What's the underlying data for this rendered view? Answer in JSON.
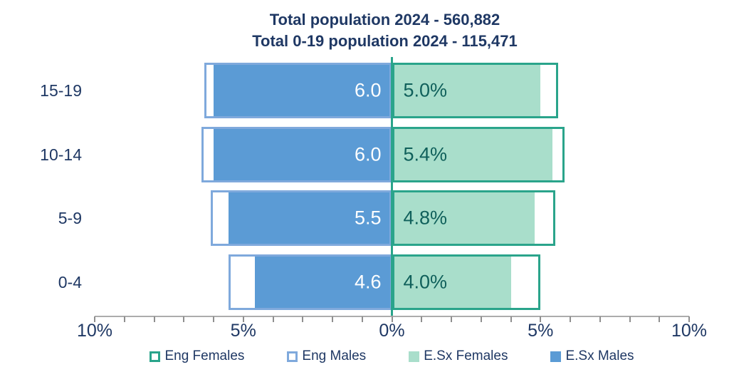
{
  "title": {
    "line1": "Total population 2024 - 560,882",
    "line2": "Total 0-19 population 2024 - 115,471"
  },
  "colors": {
    "navy_text": "#1F3864",
    "male_fill": "#5B9BD5",
    "male_outline": "#7FA9DC",
    "female_fill": "#A9DECB",
    "female_outline": "#2AA48B",
    "female_label_text": "#10605B",
    "male_label_text": "#FFFFFF",
    "center_line": "#2AA48B",
    "axis_line": "#ACACAC",
    "tick": "#8F8F8F"
  },
  "chart_data": {
    "type": "bar",
    "subtype": "population-pyramid-horizontal",
    "title": "Total population 2024 - 560,882",
    "subtitle": "Total 0-19 population 2024 - 115,471",
    "categories": [
      "15-19",
      "10-14",
      "5-9",
      "0-4"
    ],
    "series": [
      {
        "name": "Eng Females",
        "side": "right",
        "style": "outline-green",
        "values_pct": [
          5.6,
          5.8,
          5.5,
          5.0
        ],
        "value_labels_shown": false,
        "note": "unlabeled outline bars, values estimated from bar lengths"
      },
      {
        "name": "Eng Males",
        "side": "left",
        "style": "outline-blue",
        "values_pct": [
          6.3,
          6.4,
          6.1,
          5.5
        ],
        "value_labels_shown": false,
        "note": "unlabeled outline bars, values estimated from bar lengths"
      },
      {
        "name": "E.Sx Females",
        "side": "right",
        "style": "fill-green",
        "values_pct": [
          5.0,
          5.4,
          4.8,
          4.0
        ],
        "value_labels_shown": true,
        "labels": [
          "5.0%",
          "5.4%",
          "4.8%",
          "4.0%"
        ]
      },
      {
        "name": "E.Sx Males",
        "side": "left",
        "style": "fill-blue",
        "values_pct": [
          6.0,
          6.0,
          5.5,
          4.6
        ],
        "value_labels_shown": true,
        "labels": [
          "6.0",
          "6.0",
          "5.5",
          "4.6"
        ]
      }
    ],
    "xlim_pct": [
      -10,
      10
    ],
    "x_minor_tick_interval_pct": 1,
    "x_tick_labels": [
      "10%",
      "5%",
      "0%",
      "5%",
      "10%"
    ],
    "x_tick_label_positions_pct": [
      -10,
      -5,
      0,
      5,
      10
    ],
    "grid": false,
    "legend_position": "bottom"
  },
  "legend": {
    "items": [
      {
        "label": "Eng Females",
        "marker": "outline-green-square"
      },
      {
        "label": "Eng Males",
        "marker": "outline-blue-square"
      },
      {
        "label": "E.Sx Females",
        "marker": "fill-green-square"
      },
      {
        "label": "E.Sx Males",
        "marker": "fill-blue-square"
      }
    ]
  }
}
